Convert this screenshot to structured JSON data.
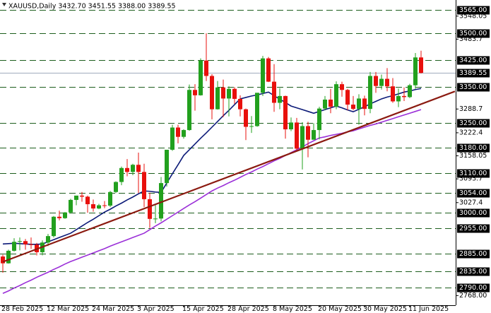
{
  "chart_data": {
    "type": "candlestick",
    "title": "XAUUSD,Daily  3432.70 3451.55 3388.00 3389.55",
    "categories": [
      "28 Feb 2025",
      null,
      null,
      null,
      null,
      null,
      null,
      null,
      "12 Mar 2025",
      null,
      null,
      null,
      null,
      null,
      null,
      null,
      "24 Mar 2025",
      null,
      null,
      null,
      null,
      null,
      null,
      null,
      "3 Apr 2025",
      null,
      null,
      null,
      null,
      null,
      null,
      null,
      "15 Apr 2025",
      null,
      null,
      null,
      null,
      null,
      null,
      null,
      "28 Apr 2025",
      null,
      null,
      null,
      null,
      null,
      null,
      null,
      "8 May 2025",
      null,
      null,
      null,
      null,
      null,
      null,
      null,
      "20 May 2025",
      null,
      null,
      null,
      null,
      null,
      null,
      null,
      "30 May 2025",
      null,
      null,
      null,
      null,
      null,
      null,
      null,
      "11 Jun 2025",
      null,
      null
    ],
    "open": [
      2877,
      2858,
      2893,
      2918,
      2920,
      2911,
      2910,
      2889,
      2916,
      2934,
      2988,
      2984,
      3000,
      3035,
      3047,
      3044,
      3023,
      3011,
      3020,
      3019,
      3057,
      3085,
      3124,
      3113,
      3133,
      3113,
      3037,
      2982,
      2983,
      3082,
      3175,
      3237,
      3211,
      3230,
      3342,
      3327,
      3424,
      3381,
      3288,
      3349,
      3318,
      3345,
      3317,
      3288,
      3239,
      3241,
      3334,
      3430,
      3365,
      3306,
      3325,
      3232,
      3251,
      3178,
      3241,
      3203,
      3230,
      3290,
      3315,
      3295,
      3358,
      3342,
      3301,
      3289,
      3318,
      3289,
      3381,
      3353,
      3373,
      3352,
      3310,
      3325,
      3322,
      3355,
      3432.7
    ],
    "high": [
      2882,
      2896,
      2928,
      2930,
      2926,
      2930,
      2915,
      2922,
      2940,
      2990,
      3005,
      3001,
      3038,
      3045,
      3057,
      3047,
      3036,
      3024,
      3032,
      3060,
      3087,
      3128,
      3149,
      3136,
      3167,
      3136,
      3055,
      3022,
      3099,
      3175,
      3245,
      3245,
      3232,
      3357,
      3358,
      3430,
      3500,
      3386,
      3367,
      3371,
      3352,
      3350,
      3327,
      3290,
      3269,
      3334,
      3437,
      3434,
      3414,
      3347,
      3326,
      3265,
      3264,
      3252,
      3253,
      3249,
      3295,
      3325,
      3345,
      3366,
      3365,
      3345,
      3325,
      3330,
      3326,
      3392,
      3392,
      3385,
      3403,
      3375,
      3346,
      3349,
      3359,
      3445,
      3451.55
    ],
    "low": [
      2832,
      2857,
      2891,
      2894,
      2896,
      2898,
      2880,
      2880,
      2906,
      2930,
      2978,
      2982,
      2997,
      3020,
      3030,
      2999,
      3002,
      3009,
      3012,
      3015,
      3054,
      3076,
      3101,
      3104,
      3054,
      3015,
      2957,
      2970,
      2975,
      3072,
      3172,
      3193,
      3206,
      3228,
      3284,
      3326,
      3367,
      3260,
      3287,
      3266,
      3268,
      3303,
      3268,
      3202,
      3222,
      3239,
      3325,
      3364,
      3281,
      3288,
      3206,
      3227,
      3171,
      3120,
      3154,
      3204,
      3204,
      3285,
      3277,
      3288,
      3323,
      3285,
      3285,
      3245,
      3271,
      3277,
      3334,
      3343,
      3338,
      3306,
      3294,
      3311,
      3319,
      3345,
      3388.0
    ],
    "close": [
      2858,
      2893,
      2918,
      2920,
      2911,
      2910,
      2889,
      2916,
      2934,
      2988,
      2984,
      3000,
      3035,
      3047,
      3044,
      3023,
      3011,
      3020,
      3019,
      3057,
      3085,
      3124,
      3113,
      3133,
      3113,
      3037,
      2982,
      2983,
      3082,
      3175,
      3237,
      3211,
      3230,
      3342,
      3327,
      3424,
      3381,
      3288,
      3349,
      3318,
      3345,
      3317,
      3288,
      3239,
      3241,
      3334,
      3430,
      3365,
      3306,
      3325,
      3232,
      3251,
      3178,
      3241,
      3203,
      3230,
      3290,
      3315,
      3295,
      3358,
      3342,
      3301,
      3289,
      3318,
      3289,
      3381,
      3353,
      3373,
      3352,
      3310,
      3325,
      3322,
      3355,
      3432.7,
      3389.55
    ],
    "up_color": "#22a01e",
    "down_color": "#e8100c",
    "overlays": [
      {
        "color": "#0c1a78",
        "values": [
          2912,
          2913,
          2914,
          2913,
          2912,
          2911,
          2911,
          2912,
          2918,
          2924,
          2930,
          2936,
          2942,
          2952,
          2962,
          2972,
          2981,
          2991,
          3001,
          3009,
          3018,
          3026,
          3035,
          3043,
          3052,
          3060,
          3059,
          3057,
          3056,
          3082,
          3108,
          3133,
          3159,
          3175,
          3191,
          3207,
          3222,
          3238,
          3254,
          3270,
          3285,
          3301,
          3317,
          3321,
          3325,
          3328,
          3332,
          3336,
          3326,
          3316,
          3307,
          3297,
          3292,
          3287,
          3282,
          3277,
          3282,
          3287,
          3292,
          3297,
          3292,
          3286,
          3281,
          3288,
          3295,
          3303,
          3310,
          3317,
          3322,
          3326,
          3331,
          3336,
          3339,
          3343,
          3346
        ]
      },
      {
        "color": "#9b30d8",
        "values": [
          2774,
          2781,
          2789,
          2796,
          2804,
          2811,
          2819,
          2826,
          2833,
          2841,
          2848,
          2856,
          2863,
          2869,
          2875,
          2881,
          2887,
          2893,
          2899,
          2906,
          2912,
          2918,
          2924,
          2930,
          2936,
          2942,
          2952,
          2962,
          2971,
          2981,
          2991,
          3001,
          3011,
          3021,
          3030,
          3040,
          3050,
          3060,
          3068,
          3075,
          3083,
          3090,
          3098,
          3106,
          3113,
          3121,
          3128,
          3136,
          3144,
          3151,
          3159,
          3167,
          3175,
          3183,
          3192,
          3200,
          3208,
          3211,
          3215,
          3218,
          3221,
          3225,
          3228,
          3233,
          3238,
          3243,
          3247,
          3252,
          3257,
          3262,
          3267,
          3272,
          3277,
          3282,
          3287
        ]
      }
    ],
    "trendline": {
      "color": "#8b1a10",
      "x": [
        0,
        80
      ],
      "values": [
        2862,
        3338
      ]
    },
    "levels": [
      {
        "value": 3565,
        "label": "3565.00"
      },
      {
        "value": 3500,
        "label": "3500.00"
      },
      {
        "value": 3425,
        "label": "3425.00"
      },
      {
        "value": 3350,
        "label": "3350.00"
      },
      {
        "value": 3250,
        "label": "3250.00"
      },
      {
        "value": 3180,
        "label": "3180.00"
      },
      {
        "value": 3110,
        "label": "3110.00"
      },
      {
        "value": 3054,
        "label": "3054.00"
      },
      {
        "value": 3000,
        "label": "3000.00"
      },
      {
        "value": 2955,
        "label": "2955.00"
      },
      {
        "value": 2885,
        "label": "2885.00"
      },
      {
        "value": 2835,
        "label": "2835.00"
      },
      {
        "value": 2790,
        "label": "2790.00"
      }
    ],
    "level_color": "#1d5e1d",
    "current_price": 3389.55,
    "ylim": [
      2741,
      3593
    ],
    "yticks": [
      3548.05,
      3483.7,
      3288.7,
      3222.4,
      3158.05,
      3093.7,
      3027.4,
      {
        "value": 2768,
        "label": "2768.00"
      }
    ]
  }
}
